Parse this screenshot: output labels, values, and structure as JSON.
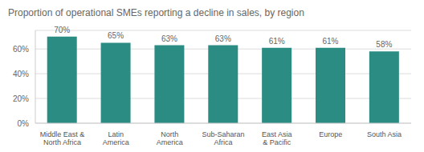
{
  "chart_data": {
    "type": "bar",
    "title": "Proportion of operational SMEs reporting a decline in sales, by region",
    "categories": [
      "Middle East & North Africa",
      "Latin America",
      "North America",
      "Sub-Saharan Africa",
      "East Asia & Pacific",
      "Europe",
      "South Asia"
    ],
    "values": [
      70,
      65,
      63,
      63,
      61,
      61,
      58
    ],
    "value_labels": [
      "70%",
      "65%",
      "63%",
      "63%",
      "61%",
      "61%",
      "58%"
    ],
    "data_labels": true,
    "color": "#2a8c82",
    "ylim": [
      0,
      75
    ],
    "yticks": [
      {
        "value": 0,
        "label": "0%"
      },
      {
        "value": 20,
        "label": "20%"
      },
      {
        "value": 40,
        "label": "40%"
      },
      {
        "value": 60,
        "label": "60%"
      }
    ],
    "grid": true
  }
}
